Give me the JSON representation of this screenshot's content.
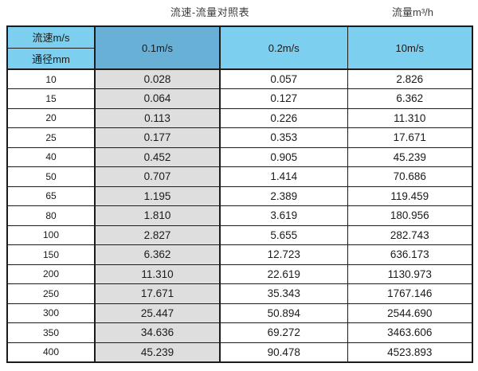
{
  "titles": {
    "main": "流速-流量对照表",
    "unit": "流量m³/h"
  },
  "colors": {
    "header_blue": "#7ccfee",
    "header_blue_dark": "#68b0d5",
    "highlight_column_gray": "#dedede",
    "border": "#1c1c1c",
    "text": "#1a1a1a"
  },
  "chart_data": {
    "type": "table",
    "title": "流速-流量对照表",
    "flow_unit_label": "流量m³/h",
    "corner_top_label": "流速m/s",
    "corner_bottom_label": "通径mm",
    "velocity_columns": [
      "0.1m/s",
      "0.2m/s",
      "10m/s"
    ],
    "rows": [
      {
        "diameter_mm": "10",
        "values": [
          "0.028",
          "0.057",
          "2.826"
        ]
      },
      {
        "diameter_mm": "15",
        "values": [
          "0.064",
          "0.127",
          "6.362"
        ]
      },
      {
        "diameter_mm": "20",
        "values": [
          "0.113",
          "0.226",
          "11.310"
        ]
      },
      {
        "diameter_mm": "25",
        "values": [
          "0.177",
          "0.353",
          "17.671"
        ]
      },
      {
        "diameter_mm": "40",
        "values": [
          "0.452",
          "0.905",
          "45.239"
        ]
      },
      {
        "diameter_mm": "50",
        "values": [
          "0.707",
          "1.414",
          "70.686"
        ]
      },
      {
        "diameter_mm": "65",
        "values": [
          "1.195",
          "2.389",
          "119.459"
        ]
      },
      {
        "diameter_mm": "80",
        "values": [
          "1.810",
          "3.619",
          "180.956"
        ]
      },
      {
        "diameter_mm": "100",
        "values": [
          "2.827",
          "5.655",
          "282.743"
        ]
      },
      {
        "diameter_mm": "150",
        "values": [
          "6.362",
          "12.723",
          "636.173"
        ]
      },
      {
        "diameter_mm": "200",
        "values": [
          "11.310",
          "22.619",
          "1130.973"
        ]
      },
      {
        "diameter_mm": "250",
        "values": [
          "17.671",
          "35.343",
          "1767.146"
        ]
      },
      {
        "diameter_mm": "300",
        "values": [
          "25.447",
          "50.894",
          "2544.690"
        ]
      },
      {
        "diameter_mm": "350",
        "values": [
          "34.636",
          "69.272",
          "3463.606"
        ]
      },
      {
        "diameter_mm": "400",
        "values": [
          "45.239",
          "90.478",
          "4523.893"
        ]
      }
    ]
  }
}
